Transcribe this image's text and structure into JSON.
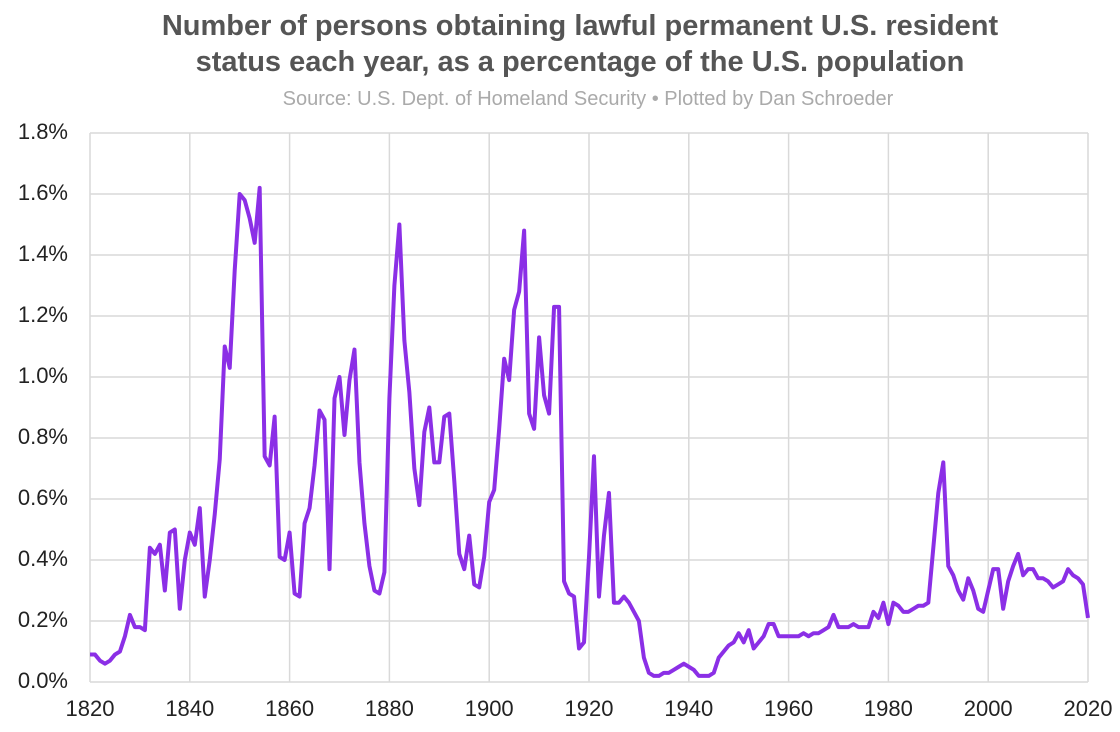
{
  "chart_data": {
    "type": "line",
    "title": "Number of persons obtaining lawful permanent U.S. resident status each year, as a percentage of the U.S. population",
    "subtitle": "Source: U.S. Dept. of Homeland Security • Plotted by Dan Schroeder",
    "x": [
      1820,
      1821,
      1822,
      1823,
      1824,
      1825,
      1826,
      1827,
      1828,
      1829,
      1830,
      1831,
      1832,
      1833,
      1834,
      1835,
      1836,
      1837,
      1838,
      1839,
      1840,
      1841,
      1842,
      1843,
      1844,
      1845,
      1846,
      1847,
      1848,
      1849,
      1850,
      1851,
      1852,
      1853,
      1854,
      1855,
      1856,
      1857,
      1858,
      1859,
      1860,
      1861,
      1862,
      1863,
      1864,
      1865,
      1866,
      1867,
      1868,
      1869,
      1870,
      1871,
      1872,
      1873,
      1874,
      1875,
      1876,
      1877,
      1878,
      1879,
      1880,
      1881,
      1882,
      1883,
      1884,
      1885,
      1886,
      1887,
      1888,
      1889,
      1890,
      1891,
      1892,
      1893,
      1894,
      1895,
      1896,
      1897,
      1898,
      1899,
      1900,
      1901,
      1902,
      1903,
      1904,
      1905,
      1906,
      1907,
      1908,
      1909,
      1910,
      1911,
      1912,
      1913,
      1914,
      1915,
      1916,
      1917,
      1918,
      1919,
      1920,
      1921,
      1922,
      1923,
      1924,
      1925,
      1926,
      1927,
      1928,
      1929,
      1930,
      1931,
      1932,
      1933,
      1934,
      1935,
      1936,
      1937,
      1938,
      1939,
      1940,
      1941,
      1942,
      1943,
      1944,
      1945,
      1946,
      1947,
      1948,
      1949,
      1950,
      1951,
      1952,
      1953,
      1954,
      1955,
      1956,
      1957,
      1958,
      1959,
      1960,
      1961,
      1962,
      1963,
      1964,
      1965,
      1966,
      1967,
      1968,
      1969,
      1970,
      1971,
      1972,
      1973,
      1974,
      1975,
      1976,
      1977,
      1978,
      1979,
      1980,
      1981,
      1982,
      1983,
      1984,
      1985,
      1986,
      1987,
      1988,
      1989,
      1990,
      1991,
      1992,
      1993,
      1994,
      1995,
      1996,
      1997,
      1998,
      1999,
      2000,
      2001,
      2002,
      2003,
      2004,
      2005,
      2006,
      2007,
      2008,
      2009,
      2010,
      2011,
      2012,
      2013,
      2014,
      2015,
      2016,
      2017,
      2018,
      2019,
      2020
    ],
    "series": [
      {
        "color": "#8b2fe6",
        "values": [
          0.09,
          0.09,
          0.07,
          0.06,
          0.07,
          0.09,
          0.1,
          0.15,
          0.22,
          0.18,
          0.18,
          0.17,
          0.44,
          0.42,
          0.45,
          0.3,
          0.49,
          0.5,
          0.24,
          0.4,
          0.49,
          0.45,
          0.57,
          0.28,
          0.4,
          0.55,
          0.73,
          1.1,
          1.03,
          1.35,
          1.6,
          1.58,
          1.52,
          1.44,
          1.62,
          0.74,
          0.71,
          0.87,
          0.41,
          0.4,
          0.49,
          0.29,
          0.28,
          0.52,
          0.57,
          0.71,
          0.89,
          0.86,
          0.37,
          0.93,
          1.0,
          0.81,
          0.99,
          1.09,
          0.72,
          0.52,
          0.38,
          0.3,
          0.29,
          0.36,
          0.93,
          1.3,
          1.5,
          1.12,
          0.95,
          0.7,
          0.58,
          0.82,
          0.9,
          0.72,
          0.72,
          0.87,
          0.88,
          0.66,
          0.42,
          0.37,
          0.48,
          0.32,
          0.31,
          0.41,
          0.59,
          0.63,
          0.83,
          1.06,
          0.99,
          1.22,
          1.28,
          1.48,
          0.88,
          0.83,
          1.13,
          0.94,
          0.88,
          1.23,
          1.23,
          0.33,
          0.29,
          0.28,
          0.11,
          0.13,
          0.41,
          0.74,
          0.28,
          0.48,
          0.62,
          0.26,
          0.26,
          0.28,
          0.26,
          0.23,
          0.2,
          0.08,
          0.03,
          0.02,
          0.02,
          0.03,
          0.03,
          0.04,
          0.05,
          0.06,
          0.05,
          0.04,
          0.02,
          0.02,
          0.02,
          0.03,
          0.08,
          0.1,
          0.12,
          0.13,
          0.16,
          0.13,
          0.17,
          0.11,
          0.13,
          0.15,
          0.19,
          0.19,
          0.15,
          0.15,
          0.15,
          0.15,
          0.15,
          0.16,
          0.15,
          0.16,
          0.16,
          0.17,
          0.18,
          0.22,
          0.18,
          0.18,
          0.18,
          0.19,
          0.18,
          0.18,
          0.18,
          0.23,
          0.21,
          0.26,
          0.19,
          0.26,
          0.25,
          0.23,
          0.23,
          0.24,
          0.25,
          0.25,
          0.26,
          0.44,
          0.62,
          0.72,
          0.38,
          0.35,
          0.3,
          0.27,
          0.34,
          0.3,
          0.24,
          0.23,
          0.3,
          0.37,
          0.37,
          0.24,
          0.33,
          0.38,
          0.42,
          0.35,
          0.37,
          0.37,
          0.34,
          0.34,
          0.33,
          0.31,
          0.32,
          0.33,
          0.37,
          0.35,
          0.34,
          0.32,
          0.21
        ]
      }
    ],
    "xlim": [
      1820,
      2020
    ],
    "xticks": [
      1820,
      1840,
      1860,
      1880,
      1900,
      1920,
      1940,
      1960,
      1980,
      2000,
      2020
    ],
    "ylim": [
      0,
      1.8
    ],
    "yticks": [
      {
        "value": 0,
        "label": "0.0%"
      },
      {
        "value": 0.2,
        "label": "0.2%"
      },
      {
        "value": 0.4,
        "label": "0.4%"
      },
      {
        "value": 0.6,
        "label": "0.6%"
      },
      {
        "value": 0.8,
        "label": "0.8%"
      },
      {
        "value": 1.0,
        "label": "1.0%"
      },
      {
        "value": 1.2,
        "label": "1.2%"
      },
      {
        "value": 1.4,
        "label": "1.4%"
      },
      {
        "value": 1.6,
        "label": "1.6%"
      },
      {
        "value": 1.8,
        "label": "1.8%"
      }
    ],
    "grid": true
  }
}
